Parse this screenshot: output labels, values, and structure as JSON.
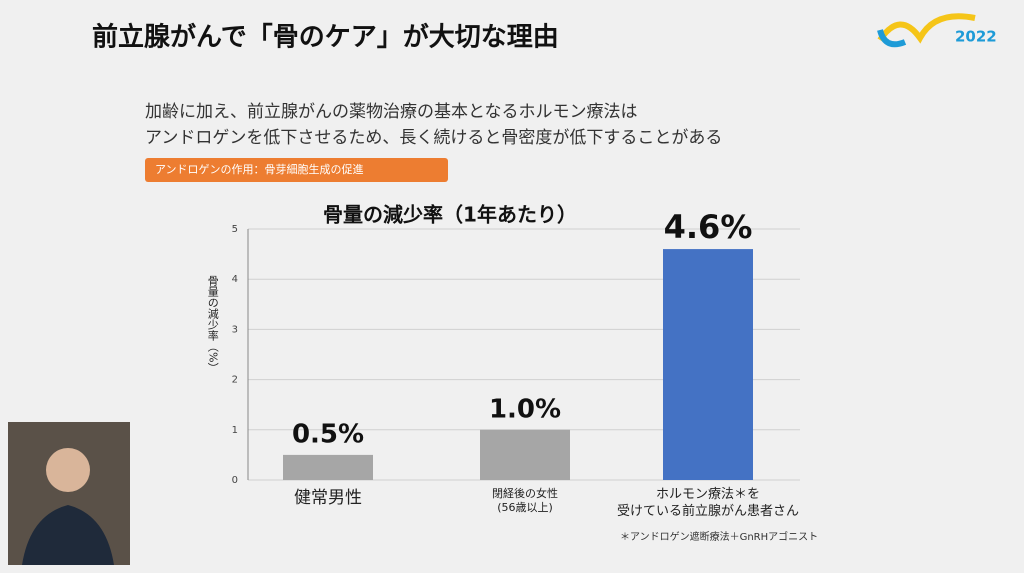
{
  "slide": {
    "title": "前立腺がんで「骨のケア」が大切な理由",
    "lines": [
      "加齢に加え、前立腺がんの薬物治療の基本となるホルモン療法は",
      "アンドロゲンを低下させるため、長く続けると骨密度が低下することがある"
    ],
    "tag": "アンドロゲンの作用：骨芽細胞生成の促進",
    "logo": "2022",
    "footnote": "＊アンドロゲン遮断療法＋GnRHアゴニスト"
  },
  "chart_data": {
    "type": "bar",
    "title": "骨量の減少率（1年あたり）",
    "y_label": "骨量の減少率（%）",
    "categories": [
      "健常男性",
      "閉経後の女性\n(56歳以上)",
      "ホルモン療法＊を\n受けている前立腺がん患者さん"
    ],
    "values": [
      0.5,
      1.0,
      4.6
    ],
    "value_labels": [
      "0.5%",
      "1.0%",
      "4.6%"
    ],
    "colors": [
      "#a6a6a6",
      "#a6a6a6",
      "#4472c4"
    ],
    "ylim": [
      0,
      5
    ],
    "yticks": [
      0,
      1,
      2,
      3,
      4,
      5
    ],
    "grid": true
  }
}
